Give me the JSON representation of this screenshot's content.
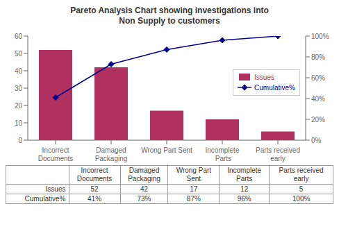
{
  "chart_data": {
    "type": "bar",
    "title": "Pareto Analysis Chart showing investigations into\nNon Supply to customers",
    "categories": [
      "Incorrect\nDocuments",
      "Damaged\nPackaging",
      "Wrong Part Sent",
      "Incomplete\n Parts",
      "Parts received\nearly"
    ],
    "series": [
      {
        "name": "Issues",
        "type": "bar",
        "color": "#b03060",
        "values": [
          52,
          42,
          17,
          12,
          5
        ]
      },
      {
        "name": "Cumulative%",
        "type": "line",
        "color": "#00008b",
        "marker": "diamond",
        "axis": "y2",
        "values": [
          41,
          73,
          87,
          96,
          100
        ]
      }
    ],
    "ylim": [
      0,
      60
    ],
    "yticks": [
      0,
      10,
      20,
      30,
      40,
      50,
      60
    ],
    "y2lim": [
      0,
      100
    ],
    "y2ticks": [
      {
        "value": 0,
        "label": "0%"
      },
      {
        "value": 20,
        "label": "20%"
      },
      {
        "value": 40,
        "label": "40%"
      },
      {
        "value": 60,
        "label": "60%"
      },
      {
        "value": 80,
        "label": "80%"
      },
      {
        "value": 100,
        "label": "100%"
      }
    ],
    "grid": false,
    "legend": "right",
    "table": {
      "columns": [
        "Incorrect\nDocuments",
        "Damaged\nPackaging",
        "Wrong Part\nSent",
        "Incomplete\nParts",
        "Parts received\nearly"
      ],
      "rows": [
        {
          "name": "Issues",
          "cells": [
            "52",
            "42",
            "17",
            "12",
            "5"
          ]
        },
        {
          "name": "Cumulative%",
          "cells": [
            "41%",
            "73%",
            "87%",
            "96%",
            "100%"
          ]
        }
      ]
    }
  }
}
